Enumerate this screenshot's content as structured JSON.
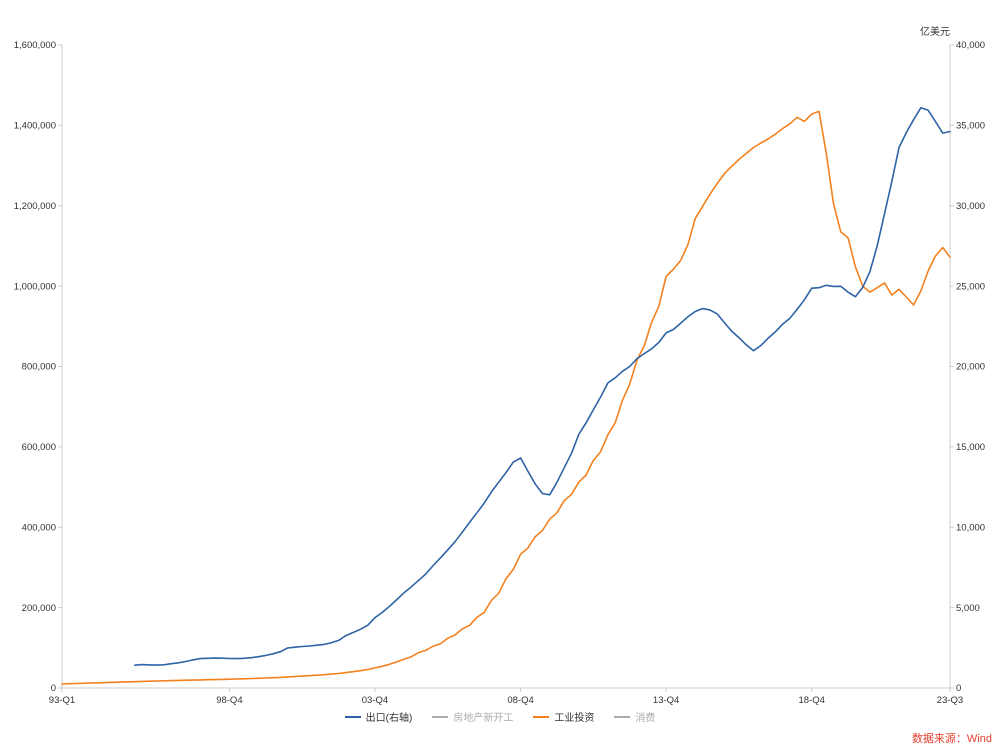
{
  "unit_label": "亿美元",
  "source_label": "数据来源：Wind",
  "colors": {
    "export_blue": "#2e63a5",
    "industry_orange": "#f4811f",
    "disabled_gray": "#ababab",
    "axis_line": "#cccccc",
    "tick_text": "#333333",
    "legend_text": "#333333",
    "source_red": "#e53e2e"
  },
  "chart_data": {
    "type": "line",
    "x_unit": "quarter_index_from_93Q1",
    "x_range": [
      0,
      122
    ],
    "grid": false,
    "legend_position": "bottom",
    "x_ticks": [
      {
        "label": "93-Q1",
        "index": 0
      },
      {
        "label": "98-Q4",
        "index": 23
      },
      {
        "label": "03-Q4",
        "index": 43
      },
      {
        "label": "08-Q4",
        "index": 63
      },
      {
        "label": "13-Q4",
        "index": 83
      },
      {
        "label": "18-Q4",
        "index": 103
      },
      {
        "label": "23-Q3",
        "index": 122
      }
    ],
    "left_axis": {
      "min": 0,
      "max": 1600000,
      "step": 200000,
      "tick_labels": [
        "0",
        "200,000",
        "400,000",
        "600,000",
        "800,000",
        "1,000,000",
        "1,200,000",
        "1,400,000",
        "1,600,000"
      ]
    },
    "right_axis": {
      "min": 0,
      "max": 40000,
      "step": 5000,
      "unit": "亿美元",
      "tick_labels": [
        "0",
        "5,000",
        "10,000",
        "15,000",
        "20,000",
        "25,000",
        "30,000",
        "35,000",
        "40,000"
      ]
    },
    "legend": [
      {
        "label": "出口(右轴)",
        "color": "#2e63a5",
        "enabled": true
      },
      {
        "label": "房地产新开工",
        "color": "#ababab",
        "enabled": false
      },
      {
        "label": "工业投资",
        "color": "#f4811f",
        "enabled": true
      },
      {
        "label": "消费",
        "color": "#ababab",
        "enabled": false
      }
    ],
    "series": [
      {
        "name": "工业投资",
        "axis": "left",
        "color": "#f4811f",
        "start_index": 0,
        "values": [
          10000,
          10600,
          11200,
          11800,
          12400,
          13000,
          13500,
          14100,
          14700,
          15200,
          15800,
          16300,
          16800,
          17300,
          17800,
          18300,
          18800,
          19300,
          19700,
          20200,
          20600,
          21000,
          21500,
          22000,
          22500,
          23000,
          23600,
          24200,
          24900,
          25700,
          26500,
          27500,
          28500,
          29600,
          30700,
          31800,
          33000,
          34500,
          36200,
          38200,
          40500,
          43000,
          46000,
          50000,
          54000,
          59000,
          65000,
          72000,
          78000,
          88000,
          94000,
          104000,
          110000,
          124000,
          132000,
          147000,
          156000,
          176000,
          188000,
          218000,
          236000,
          272000,
          295000,
          333000,
          348000,
          376000,
          392000,
          420000,
          436000,
          466000,
          482000,
          512000,
          530000,
          566000,
          588000,
          630000,
          660000,
          716000,
          756000,
          816000,
          852000,
          910000,
          950000,
          1024000,
          1042000,
          1064000,
          1104000,
          1168000,
          1198000,
          1228000,
          1255000,
          1280000,
          1298000,
          1315000,
          1330000,
          1345000,
          1356000,
          1366000,
          1378000,
          1392000,
          1404000,
          1420000,
          1410000,
          1428000,
          1435000,
          1330000,
          1205000,
          1135000,
          1120000,
          1048000,
          1000000,
          985000,
          996000,
          1008000,
          978000,
          992000,
          973000,
          953000,
          988000,
          1038000,
          1075000,
          1096000,
          1072000
        ]
      },
      {
        "name": "出口(右轴)",
        "axis": "right",
        "color": "#2e63a5",
        "start_index": 10,
        "values": [
          1420,
          1455,
          1440,
          1425,
          1445,
          1510,
          1570,
          1650,
          1750,
          1830,
          1850,
          1862,
          1855,
          1838,
          1830,
          1845,
          1885,
          1950,
          2030,
          2130,
          2260,
          2490,
          2540,
          2580,
          2610,
          2660,
          2710,
          2810,
          2960,
          3260,
          3450,
          3650,
          3900,
          4380,
          4700,
          5080,
          5500,
          5930,
          6300,
          6700,
          7100,
          7620,
          8100,
          8600,
          9100,
          9690,
          10300,
          10900,
          11500,
          12200,
          12800,
          13400,
          14050,
          14310,
          13500,
          12700,
          12100,
          12020,
          12800,
          13700,
          14600,
          15780,
          16500,
          17300,
          18100,
          18980,
          19300,
          19700,
          20000,
          20490,
          20800,
          21100,
          21500,
          22090,
          22300,
          22700,
          23100,
          23420,
          23600,
          23520,
          23280,
          22730,
          22200,
          21800,
          21350,
          20980,
          21300,
          21750,
          22150,
          22630,
          23000,
          23550,
          24150,
          24870,
          24900,
          25050,
          24980,
          24990,
          24620,
          24340,
          24920,
          25900,
          27500,
          29500,
          31500,
          33620,
          34550,
          35350,
          36100,
          35940,
          35250,
          34520,
          34620
        ]
      }
    ]
  }
}
